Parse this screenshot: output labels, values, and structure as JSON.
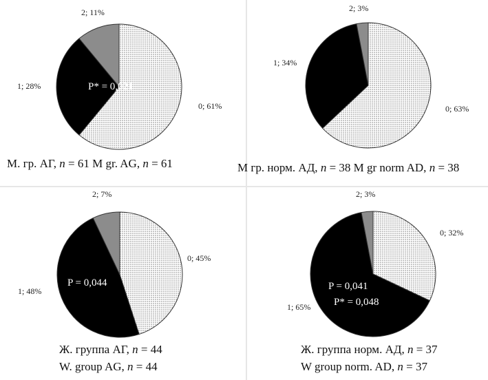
{
  "chart_data": [
    {
      "type": "pie",
      "categories": [
        "0",
        "1",
        "2"
      ],
      "values": [
        61,
        28,
        11
      ],
      "slice_labels": [
        "0; 61%",
        "1; 28%",
        "2; 11%"
      ],
      "notes": [
        "P* = 0,021"
      ],
      "caption": {
        "text": "М. гр. АГ, ",
        "n1": "n",
        "eq1": " = 61 M gr. AG, ",
        "n2": "n",
        "eq2": " = 61"
      }
    },
    {
      "type": "pie",
      "categories": [
        "0",
        "1",
        "2"
      ],
      "values": [
        63,
        34,
        3
      ],
      "slice_labels": [
        "0; 63%",
        "1; 34%",
        "2; 3%"
      ],
      "notes": [],
      "caption": {
        "text": "М гр. норм. АД, ",
        "n1": "n",
        "eq1": " = 38 M gr norm AD, ",
        "n2": "n",
        "eq2": " = 38"
      }
    },
    {
      "type": "pie",
      "categories": [
        "0",
        "1",
        "2"
      ],
      "values": [
        45,
        48,
        7
      ],
      "slice_labels": [
        "0; 45%",
        "1; 48%",
        "2; 7%"
      ],
      "notes": [
        "P = 0,044"
      ],
      "caption": {
        "line1a": "Ж. группа АГ, ",
        "line1n": "n",
        "line1b": " = 44",
        "line2a": "W. group AG, ",
        "line2n": "n",
        "line2b": " = 44"
      }
    },
    {
      "type": "pie",
      "categories": [
        "0",
        "1",
        "2"
      ],
      "values": [
        32,
        65,
        3
      ],
      "slice_labels": [
        "0; 32%",
        "1; 65%",
        "2; 3%"
      ],
      "notes": [
        "P = 0,041",
        "P* = 0,048"
      ],
      "caption": {
        "line1a": "Ж. группа норм. АД, ",
        "line1n": "n",
        "line1b": " = 37",
        "line2a": "W group norm. AD, ",
        "line2n": "n",
        "line2b": " = 37"
      }
    }
  ],
  "colors": {
    "slice0": "#dcdcdc",
    "slice1": "#000000",
    "slice2": "#8c8c8c",
    "outline": "#333333"
  }
}
